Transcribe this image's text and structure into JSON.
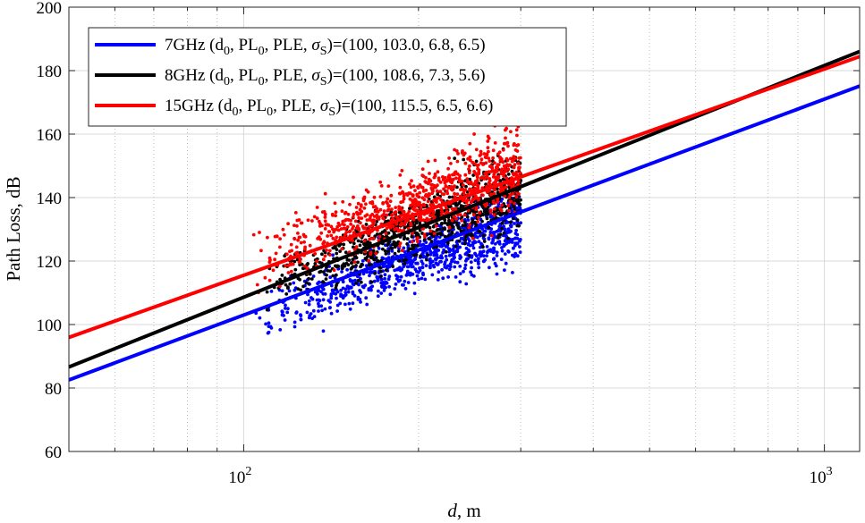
{
  "chart_data": {
    "type": "line",
    "title": "",
    "xlabel_italic": "d",
    "xlabel_rest": ", m",
    "ylabel": "Path Loss, dB",
    "xscale": "log",
    "xlim": [
      50,
      1150
    ],
    "ylim": [
      60,
      200
    ],
    "yticks": [
      60,
      80,
      100,
      120,
      140,
      160,
      180,
      200
    ],
    "xticks": [
      {
        "value": 100,
        "base": "10",
        "exp": "2"
      },
      {
        "value": 1000,
        "base": "10",
        "exp": "3"
      }
    ],
    "grid": true,
    "legend_position": "top-left",
    "series": [
      {
        "name": "7GHz",
        "color": "#0000ff",
        "d0": 100,
        "PL0": 103.0,
        "PLE": 6.8,
        "sigma": 6.5,
        "legend": {
          "prefix": "7GHz (d",
          "sub1": "0",
          "mid1": ", PL",
          "sub2": "0",
          "mid2": ", PLE, ",
          "sigma": "σ",
          "sub3": "S",
          "suffix": ")=(100, 103.0, 6.8, 6.5)"
        },
        "scatter": {
          "dmin": 104,
          "dmax": 300,
          "offset": -3,
          "spread": 4
        }
      },
      {
        "name": "8GHz",
        "color": "#000000",
        "d0": 100,
        "PL0": 108.6,
        "PLE": 7.3,
        "sigma": 5.6,
        "legend": {
          "prefix": "8GHz (d",
          "sub1": "0",
          "mid1": ", PL",
          "sub2": "0",
          "mid2": ", PLE, ",
          "sigma": "σ",
          "sub3": "S",
          "suffix": ")=(100, 108.6, 7.3, 5.6)"
        },
        "scatter": {
          "dmin": 104,
          "dmax": 300,
          "offset": 0,
          "spread": 4.5
        }
      },
      {
        "name": "15GHz",
        "color": "#ff0000",
        "d0": 100,
        "PL0": 115.5,
        "PLE": 6.5,
        "sigma": 6.6,
        "legend": {
          "prefix": "15GHz (d",
          "sub1": "0",
          "mid1": ", PL",
          "sub2": "0",
          "mid2": ", PLE, ",
          "sigma": "σ",
          "sub3": "S",
          "suffix": ")=(100, 115.5, 6.5, 6.6)"
        },
        "scatter": {
          "dmin": 103,
          "dmax": 300,
          "offset": 3,
          "spread": 5
        }
      }
    ]
  }
}
